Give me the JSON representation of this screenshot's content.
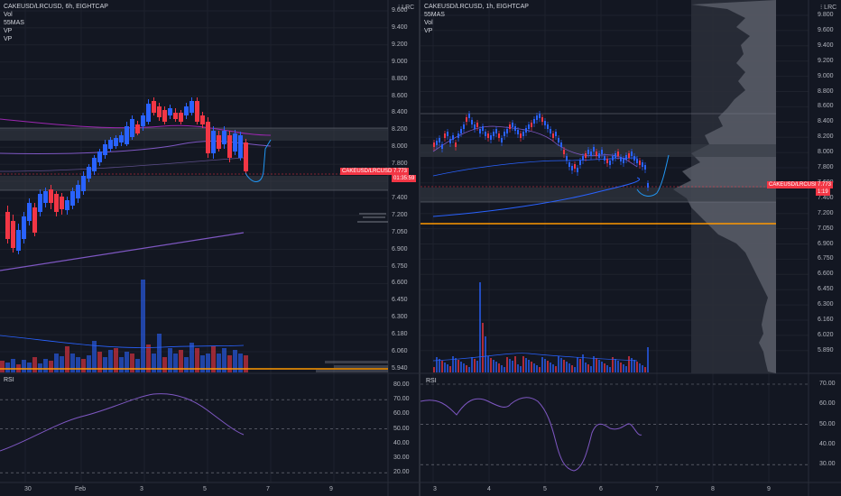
{
  "left": {
    "legend": [
      "CAKEUSD/LRCUSD, 6h, EIGHTCAP",
      "Vol",
      "55MAS",
      "VP",
      "VP"
    ],
    "corner": "LRC",
    "price_ticks": [
      "9.600",
      "9.400",
      "9.200",
      "9.000",
      "8.800",
      "8.600",
      "8.400",
      "8.200",
      "8.000",
      "7.800",
      "7.600",
      "7.400",
      "7.200",
      "7.050",
      "6.900",
      "6.750",
      "6.600",
      "6.450",
      "6.300",
      "6.180",
      "6.060",
      "5.940"
    ],
    "rsi_label": "RSI",
    "rsi_ticks": [
      "80.00",
      "70.00",
      "60.00",
      "50.00",
      "40.00",
      "30.00",
      "20.00"
    ],
    "time_ticks": [
      "30",
      "Feb",
      "3",
      "5",
      "7",
      "9"
    ],
    "symbol_tag": "CAKEUSD/LRCUSD",
    "price_tag": "7.773",
    "countdown_tag": "01:35:59",
    "colors": {
      "up": "#2962ff",
      "down": "#f23645"
    }
  },
  "right": {
    "legend": [
      "CAKEUSD/LRCUSD, 1h, EIGHTCAP",
      "55MAS",
      "Vol",
      "VP"
    ],
    "corner": "LRC",
    "price_ticks": [
      "9.800",
      "9.600",
      "9.400",
      "9.200",
      "9.000",
      "8.800",
      "8.600",
      "8.400",
      "8.200",
      "8.000",
      "7.800",
      "7.600",
      "7.400",
      "7.200",
      "7.050",
      "6.900",
      "6.750",
      "6.600",
      "6.450",
      "6.300",
      "6.160",
      "6.020",
      "5.890"
    ],
    "rsi_label": "RSI",
    "rsi_ticks": [
      "70.00",
      "60.00",
      "50.00",
      "40.00",
      "30.00"
    ],
    "time_ticks": [
      "3",
      "4",
      "5",
      "6",
      "7",
      "8",
      "9"
    ],
    "symbol_tag": "CAKEUSD/LRCUSD",
    "price_tag": "7.773",
    "countdown_tag": "1:19"
  }
}
